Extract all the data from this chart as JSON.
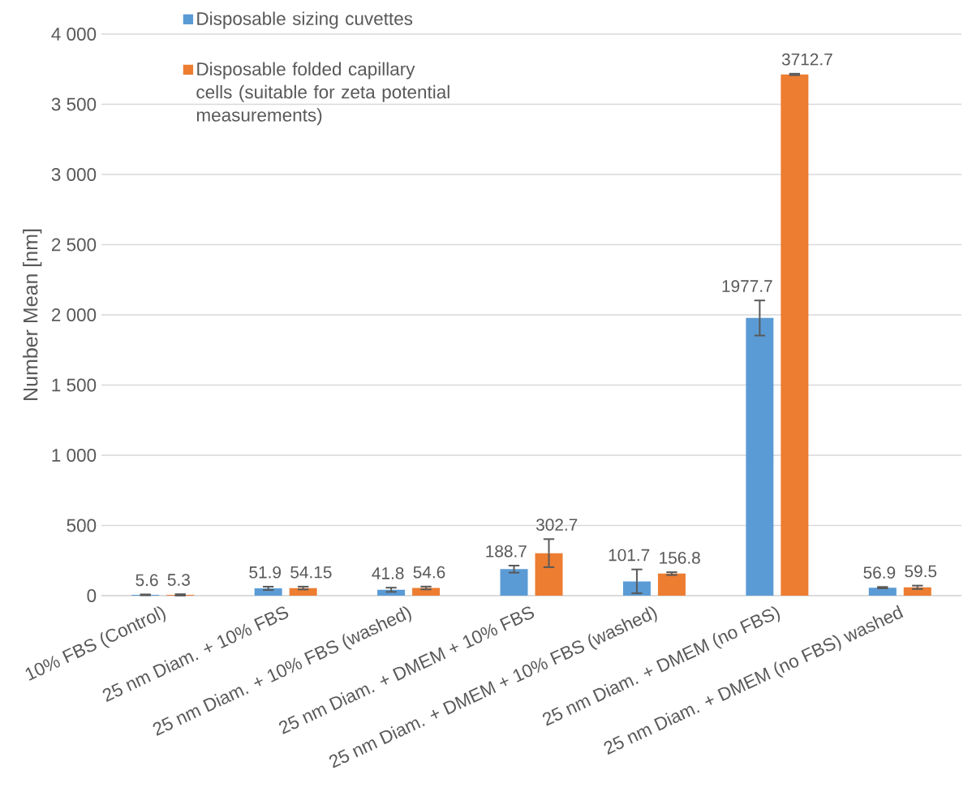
{
  "chart_data": {
    "type": "bar",
    "ylabel": "Number Mean [nm]",
    "categories": [
      "10% FBS (Control)",
      "25 nm Diam. + 10% FBS",
      "25 nm Diam. + 10% FBS (washed)",
      "25 nm Diam. + DMEM + 10% FBS",
      "25 nm Diam. + DMEM + 10% FBS (washed)",
      "25 nm Diam. + DMEM (no FBS)",
      "25 nm Diam. + DMEM (no FBS) washed"
    ],
    "series": [
      {
        "name": "Disposable sizing cuvettes",
        "color": "#5b9bd5",
        "values": [
          5.6,
          51.9,
          41.8,
          188.7,
          101.7,
          1977.7,
          56.9
        ],
        "errors": [
          3,
          12,
          15,
          25,
          85,
          125,
          5
        ],
        "value_labels": [
          "5.6",
          "51.9",
          "41.8",
          "188.7",
          "101.7",
          "1977.7",
          "56.9"
        ]
      },
      {
        "name": "Disposable folded capillary cells (suitable for zeta potential measurements)",
        "color": "#ed7d31",
        "values": [
          5.3,
          54.15,
          54.6,
          302.7,
          156.8,
          3712.7,
          59.5
        ],
        "errors": [
          5,
          10,
          10,
          100,
          10,
          5,
          12
        ],
        "value_labels": [
          "5.3",
          "54.15",
          "54.6",
          "302.7",
          "156.8",
          "3712.7",
          "59.5"
        ]
      }
    ],
    "ylim": [
      0,
      4000
    ],
    "yticks": [
      0,
      500,
      {
        "value": 1000,
        "label": "1 000"
      },
      {
        "value": 1500,
        "label": "1 500"
      },
      {
        "value": 2000,
        "label": "2 000"
      },
      {
        "value": 2500,
        "label": "2 500"
      },
      {
        "value": 3000,
        "label": "3 000"
      },
      {
        "value": 3500,
        "label": "3 500"
      },
      {
        "value": 4000,
        "label": "4 000"
      }
    ],
    "grid": "y",
    "legend": "top left"
  }
}
